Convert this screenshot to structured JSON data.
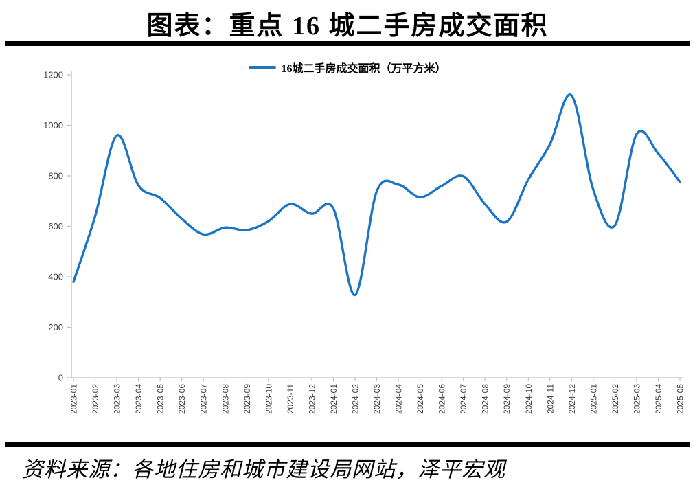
{
  "title": "图表：重点 16 城二手房成交面积",
  "legend": {
    "label": "16城二手房成交面积（万平方米）"
  },
  "source": "资料来源：各地住房和城市建设局网站，泽平宏观",
  "colors": {
    "line": "#1B74C4",
    "axis": "#BFBFBF",
    "tick_label": "#3F3F3F",
    "rule": "#000000",
    "background": "#FFFFFF"
  },
  "chart_data": {
    "type": "line",
    "title": "图表：重点 16 城二手房成交面积",
    "series": [
      {
        "name": "16城二手房成交面积（万平方米）",
        "values": [
          380,
          640,
          960,
          762,
          712,
          630,
          568,
          595,
          585,
          620,
          688,
          650,
          670,
          328,
          738,
          765,
          715,
          760,
          798,
          688,
          618,
          785,
          925,
          1118,
          745,
          604,
          965,
          888,
          776
        ]
      }
    ],
    "x": [
      "2023-01",
      "2023-02",
      "2023-03",
      "2023-04",
      "2023-05",
      "2023-06",
      "2023-07",
      "2023-08",
      "2023-09",
      "2023-10",
      "2023-11",
      "2023-12",
      "2024-01",
      "2024-02",
      "2024-03",
      "2024-04",
      "2024-05",
      "2024-06",
      "2024-07",
      "2024-08",
      "2024-09",
      "2024-10",
      "2024-11",
      "2024-12",
      "2025-01",
      "2025-02",
      "2025-03",
      "2025-04",
      "2025-05"
    ],
    "xlabel": "",
    "ylabel": "",
    "ylim": [
      0,
      1200
    ],
    "ytick_step": 200,
    "grid": false,
    "smooth": true,
    "legend_position": "top-center",
    "x_label_rotation": -90
  }
}
